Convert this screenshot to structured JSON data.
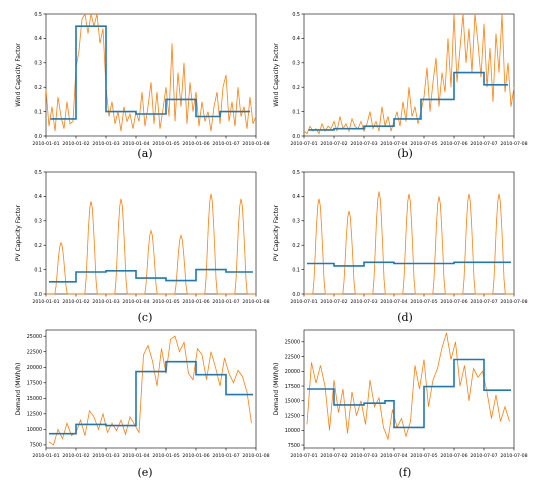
{
  "colors": {
    "orange": "#ff7f0e",
    "blue": "#1f77b4",
    "axis": "#000000"
  },
  "chart_data": [
    {
      "type": "line",
      "caption": "(a)",
      "ylabel": "Wind Capacity Factor",
      "ylim": [
        0,
        0.5
      ],
      "yticks": [
        "0.0",
        "0.1",
        "0.2",
        "0.3",
        "0.4",
        "0.5"
      ],
      "yticks_values": [
        0,
        0.1,
        0.2,
        0.3,
        0.4,
        0.5
      ],
      "xlim": [
        0,
        7
      ],
      "xticks": [
        "2010-01-01",
        "2010-01-02",
        "2010-01-03",
        "2010-01-04",
        "2010-01-05",
        "2010-01-06",
        "2010-01-07",
        "2010-01-08"
      ],
      "series": [
        {
          "style": "hourly",
          "x": [
            0,
            0.1,
            0.2,
            0.3,
            0.4,
            0.5,
            0.6,
            0.7,
            0.8,
            0.9,
            1.0,
            1.1,
            1.2,
            1.3,
            1.4,
            1.5,
            1.6,
            1.7,
            1.8,
            1.9,
            2.0,
            2.1,
            2.2,
            2.3,
            2.4,
            2.5,
            2.6,
            2.7,
            2.8,
            2.9,
            3.0,
            3.1,
            3.2,
            3.3,
            3.4,
            3.5,
            3.6,
            3.7,
            3.8,
            3.9,
            4.0,
            4.1,
            4.2,
            4.3,
            4.4,
            4.5,
            4.6,
            4.7,
            4.8,
            4.9,
            5.0,
            5.1,
            5.2,
            5.3,
            5.4,
            5.5,
            5.6,
            5.7,
            5.8,
            5.9,
            6.0,
            6.1,
            6.2,
            6.3,
            6.4,
            6.5,
            6.6,
            6.7,
            6.8,
            6.9,
            7.0
          ],
          "values": [
            0.19,
            0.04,
            0.12,
            0.02,
            0.16,
            0.08,
            0.03,
            0.14,
            0.05,
            0.06,
            0.28,
            0.35,
            0.48,
            0.5,
            0.42,
            0.5,
            0.45,
            0.5,
            0.38,
            0.44,
            0.2,
            0.08,
            0.14,
            0.05,
            0.1,
            0.02,
            0.12,
            0.06,
            0.09,
            0.03,
            0.1,
            0.06,
            0.18,
            0.04,
            0.12,
            0.22,
            0.05,
            0.18,
            0.03,
            0.11,
            0.2,
            0.08,
            0.38,
            0.06,
            0.26,
            0.12,
            0.3,
            0.05,
            0.22,
            0.1,
            0.18,
            0.04,
            0.14,
            0.06,
            0.1,
            0.02,
            0.12,
            0.18,
            0.05,
            0.2,
            0.25,
            0.06,
            0.14,
            0.04,
            0.2,
            0.08,
            0.12,
            0.03,
            0.16,
            0.05,
            0.08
          ]
        },
        {
          "style": "daily",
          "steps": [
            [
              0.15,
              1.0,
              0.07
            ],
            [
              1.0,
              2.0,
              0.45
            ],
            [
              2.0,
              3.0,
              0.1
            ],
            [
              3.0,
              4.0,
              0.09
            ],
            [
              4.0,
              5.0,
              0.15
            ],
            [
              5.0,
              5.8,
              0.08
            ],
            [
              5.8,
              6.8,
              0.1
            ]
          ]
        }
      ]
    },
    {
      "type": "line",
      "caption": "(b)",
      "ylabel": "Wind Capacity Factor",
      "ylim": [
        0,
        0.5
      ],
      "yticks": [
        "0.0",
        "0.1",
        "0.2",
        "0.3",
        "0.4",
        "0.5"
      ],
      "yticks_values": [
        0,
        0.1,
        0.2,
        0.3,
        0.4,
        0.5
      ],
      "xlim": [
        0,
        7
      ],
      "xticks": [
        "2010-07-01",
        "2010-07-02",
        "2010-07-03",
        "2010-07-04",
        "2010-07-05",
        "2010-07-06",
        "2010-07-07",
        "2010-07-08"
      ],
      "series": [
        {
          "style": "hourly",
          "x": [
            0,
            0.1,
            0.2,
            0.3,
            0.4,
            0.5,
            0.6,
            0.7,
            0.8,
            0.9,
            1.0,
            1.1,
            1.2,
            1.3,
            1.4,
            1.5,
            1.6,
            1.7,
            1.8,
            1.9,
            2.0,
            2.1,
            2.2,
            2.3,
            2.4,
            2.5,
            2.6,
            2.7,
            2.8,
            2.9,
            3.0,
            3.1,
            3.2,
            3.3,
            3.4,
            3.5,
            3.6,
            3.7,
            3.8,
            3.9,
            4.0,
            4.1,
            4.2,
            4.3,
            4.4,
            4.5,
            4.6,
            4.7,
            4.8,
            4.9,
            5.0,
            5.1,
            5.2,
            5.3,
            5.4,
            5.5,
            5.6,
            5.7,
            5.8,
            5.9,
            6.0,
            6.1,
            6.2,
            6.3,
            6.4,
            6.5,
            6.6,
            6.7,
            6.8,
            6.9,
            7.0
          ],
          "values": [
            0.02,
            0.01,
            0.04,
            0.02,
            0.03,
            0.01,
            0.05,
            0.02,
            0.04,
            0.03,
            0.06,
            0.02,
            0.08,
            0.03,
            0.05,
            0.02,
            0.07,
            0.04,
            0.03,
            0.06,
            0.02,
            0.05,
            0.1,
            0.03,
            0.06,
            0.02,
            0.12,
            0.04,
            0.08,
            0.02,
            0.06,
            0.1,
            0.04,
            0.14,
            0.06,
            0.2,
            0.08,
            0.12,
            0.05,
            0.1,
            0.16,
            0.28,
            0.1,
            0.22,
            0.32,
            0.12,
            0.26,
            0.18,
            0.4,
            0.2,
            0.5,
            0.22,
            0.36,
            0.5,
            0.3,
            0.44,
            0.26,
            0.5,
            0.38,
            0.24,
            0.46,
            0.2,
            0.36,
            0.14,
            0.42,
            0.26,
            0.5,
            0.18,
            0.3,
            0.12,
            0.2
          ]
        },
        {
          "style": "daily",
          "steps": [
            [
              0.15,
              1.0,
              0.025
            ],
            [
              1.0,
              2.0,
              0.03
            ],
            [
              2.0,
              3.0,
              0.04
            ],
            [
              3.0,
              3.9,
              0.07
            ],
            [
              3.9,
              5.0,
              0.15
            ],
            [
              5.0,
              6.0,
              0.26
            ],
            [
              6.0,
              6.8,
              0.21
            ]
          ]
        }
      ]
    },
    {
      "type": "line",
      "caption": "(c)",
      "ylabel": "PV Capacity Factor",
      "ylim": [
        0,
        0.5
      ],
      "yticks": [
        "0.0",
        "0.1",
        "0.2",
        "0.3",
        "0.4",
        "0.5"
      ],
      "yticks_values": [
        0,
        0.1,
        0.2,
        0.3,
        0.4,
        0.5
      ],
      "xlim": [
        0,
        7
      ],
      "xticks": [
        "2010-01-01",
        "2010-01-02",
        "2010-01-03",
        "2010-01-04",
        "2010-01-05",
        "2010-01-06",
        "2010-01-07",
        "2010-01-08"
      ],
      "series": [
        {
          "style": "diurnal",
          "peaks": [
            0.21,
            0.38,
            0.39,
            0.26,
            0.24,
            0.41,
            0.39
          ]
        },
        {
          "style": "daily",
          "steps": [
            [
              0.1,
              1.0,
              0.05
            ],
            [
              1.0,
              2.0,
              0.09
            ],
            [
              2.0,
              3.0,
              0.095
            ],
            [
              3.0,
              4.0,
              0.065
            ],
            [
              4.0,
              5.0,
              0.055
            ],
            [
              5.0,
              6.0,
              0.1
            ],
            [
              6.0,
              6.9,
              0.09
            ]
          ]
        }
      ]
    },
    {
      "type": "line",
      "caption": "(d)",
      "ylabel": "PV Capacity Factor",
      "ylim": [
        0,
        0.5
      ],
      "yticks": [
        "0.0",
        "0.1",
        "0.2",
        "0.3",
        "0.4",
        "0.5"
      ],
      "yticks_values": [
        0,
        0.1,
        0.2,
        0.3,
        0.4,
        0.5
      ],
      "xlim": [
        0,
        7
      ],
      "xticks": [
        "2010-07-01",
        "2010-07-02",
        "2010-07-03",
        "2010-07-04",
        "2010-07-05",
        "2010-07-06",
        "2010-07-07",
        "2010-07-08"
      ],
      "series": [
        {
          "style": "diurnal",
          "peaks": [
            0.39,
            0.34,
            0.42,
            0.41,
            0.4,
            0.41,
            0.41
          ]
        },
        {
          "style": "daily",
          "steps": [
            [
              0.1,
              1.0,
              0.125
            ],
            [
              1.0,
              2.0,
              0.115
            ],
            [
              2.0,
              3.0,
              0.13
            ],
            [
              3.0,
              4.0,
              0.125
            ],
            [
              4.0,
              5.0,
              0.125
            ],
            [
              5.0,
              6.0,
              0.13
            ],
            [
              6.0,
              6.9,
              0.13
            ]
          ]
        }
      ]
    },
    {
      "type": "line",
      "caption": "(e)",
      "ylabel": "Demand (MWh/h)",
      "ylim": [
        7000,
        26000
      ],
      "yticks": [
        "7500",
        "10000",
        "12500",
        "15000",
        "17500",
        "20000",
        "22500",
        "25000"
      ],
      "yticks_values": [
        7500,
        10000,
        12500,
        15000,
        17500,
        20000,
        22500,
        25000
      ],
      "xlim": [
        0,
        7
      ],
      "xticks": [
        "2010-01-01",
        "2010-01-02",
        "2010-01-03",
        "2010-01-04",
        "2010-01-05",
        "2010-01-06",
        "2010-01-07",
        "2010-01-08"
      ],
      "series": [
        {
          "style": "hourly",
          "x": [
            0.1,
            0.25,
            0.4,
            0.55,
            0.7,
            0.85,
            1.0,
            1.15,
            1.3,
            1.45,
            1.6,
            1.75,
            1.9,
            2.05,
            2.2,
            2.35,
            2.5,
            2.65,
            2.8,
            2.95,
            3.1,
            3.25,
            3.4,
            3.55,
            3.7,
            3.85,
            4.0,
            4.15,
            4.3,
            4.45,
            4.6,
            4.75,
            4.9,
            5.05,
            5.2,
            5.35,
            5.5,
            5.65,
            5.8,
            5.95,
            6.1,
            6.25,
            6.4,
            6.55,
            6.7,
            6.85
          ],
          "values": [
            8000,
            7500,
            10000,
            8500,
            11000,
            9000,
            9500,
            11500,
            9000,
            13000,
            12000,
            10000,
            12500,
            9500,
            11000,
            9800,
            11500,
            9200,
            12000,
            10800,
            9500,
            22000,
            23500,
            21000,
            17000,
            23000,
            19000,
            24500,
            25000,
            22500,
            24000,
            19000,
            18000,
            23000,
            22000,
            18000,
            22500,
            20000,
            17000,
            21500,
            19000,
            17500,
            19500,
            18500,
            16000,
            11000
          ]
        },
        {
          "style": "daily",
          "steps": [
            [
              0.1,
              1.0,
              9300
            ],
            [
              1.0,
              2.0,
              10800
            ],
            [
              2.0,
              3.0,
              10600
            ],
            [
              3.0,
              4.0,
              19300
            ],
            [
              4.0,
              5.0,
              20900
            ],
            [
              5.0,
              6.0,
              18800
            ],
            [
              6.0,
              6.9,
              15600
            ]
          ]
        }
      ]
    },
    {
      "type": "line",
      "caption": "(f)",
      "ylabel": "Demand (MWh/h)",
      "ylim": [
        7000,
        27000
      ],
      "yticks": [
        "7500",
        "10000",
        "12500",
        "15000",
        "17500",
        "20000",
        "22500",
        "25000"
      ],
      "yticks_values": [
        7500,
        10000,
        12500,
        15000,
        17500,
        20000,
        22500,
        25000
      ],
      "xlim": [
        0,
        7
      ],
      "xticks": [
        "2010-07-01",
        "2010-07-02",
        "2010-07-03",
        "2010-07-04",
        "2010-07-05",
        "2010-07-06",
        "2010-07-07",
        "2010-07-08"
      ],
      "series": [
        {
          "style": "hourly",
          "x": [
            0.1,
            0.25,
            0.4,
            0.55,
            0.7,
            0.85,
            1.0,
            1.15,
            1.3,
            1.45,
            1.6,
            1.75,
            1.9,
            2.05,
            2.2,
            2.35,
            2.5,
            2.65,
            2.8,
            2.95,
            3.1,
            3.25,
            3.4,
            3.55,
            3.7,
            3.85,
            4.0,
            4.15,
            4.3,
            4.45,
            4.6,
            4.75,
            4.9,
            5.05,
            5.2,
            5.35,
            5.5,
            5.65,
            5.8,
            5.95,
            6.1,
            6.25,
            6.4,
            6.55,
            6.7,
            6.85
          ],
          "values": [
            11000,
            21500,
            18000,
            21000,
            17500,
            10000,
            18500,
            13000,
            17000,
            9500,
            16500,
            12500,
            15000,
            11000,
            18500,
            14000,
            15500,
            10500,
            8500,
            13500,
            10500,
            12000,
            9000,
            11500,
            21000,
            17000,
            22000,
            14000,
            18500,
            20500,
            24000,
            26500,
            22000,
            25000,
            17500,
            21000,
            15000,
            20500,
            19000,
            20000,
            16500,
            12000,
            16000,
            11500,
            14000,
            11500
          ]
        },
        {
          "style": "daily",
          "steps": [
            [
              0.1,
              1.0,
              17000
            ],
            [
              1.0,
              2.0,
              14300
            ],
            [
              2.0,
              2.7,
              14600
            ],
            [
              2.7,
              3.0,
              15000
            ],
            [
              3.0,
              4.0,
              10500
            ],
            [
              4.0,
              5.0,
              17400
            ],
            [
              5.0,
              6.0,
              22000
            ],
            [
              6.0,
              6.9,
              16800
            ]
          ]
        }
      ]
    }
  ]
}
